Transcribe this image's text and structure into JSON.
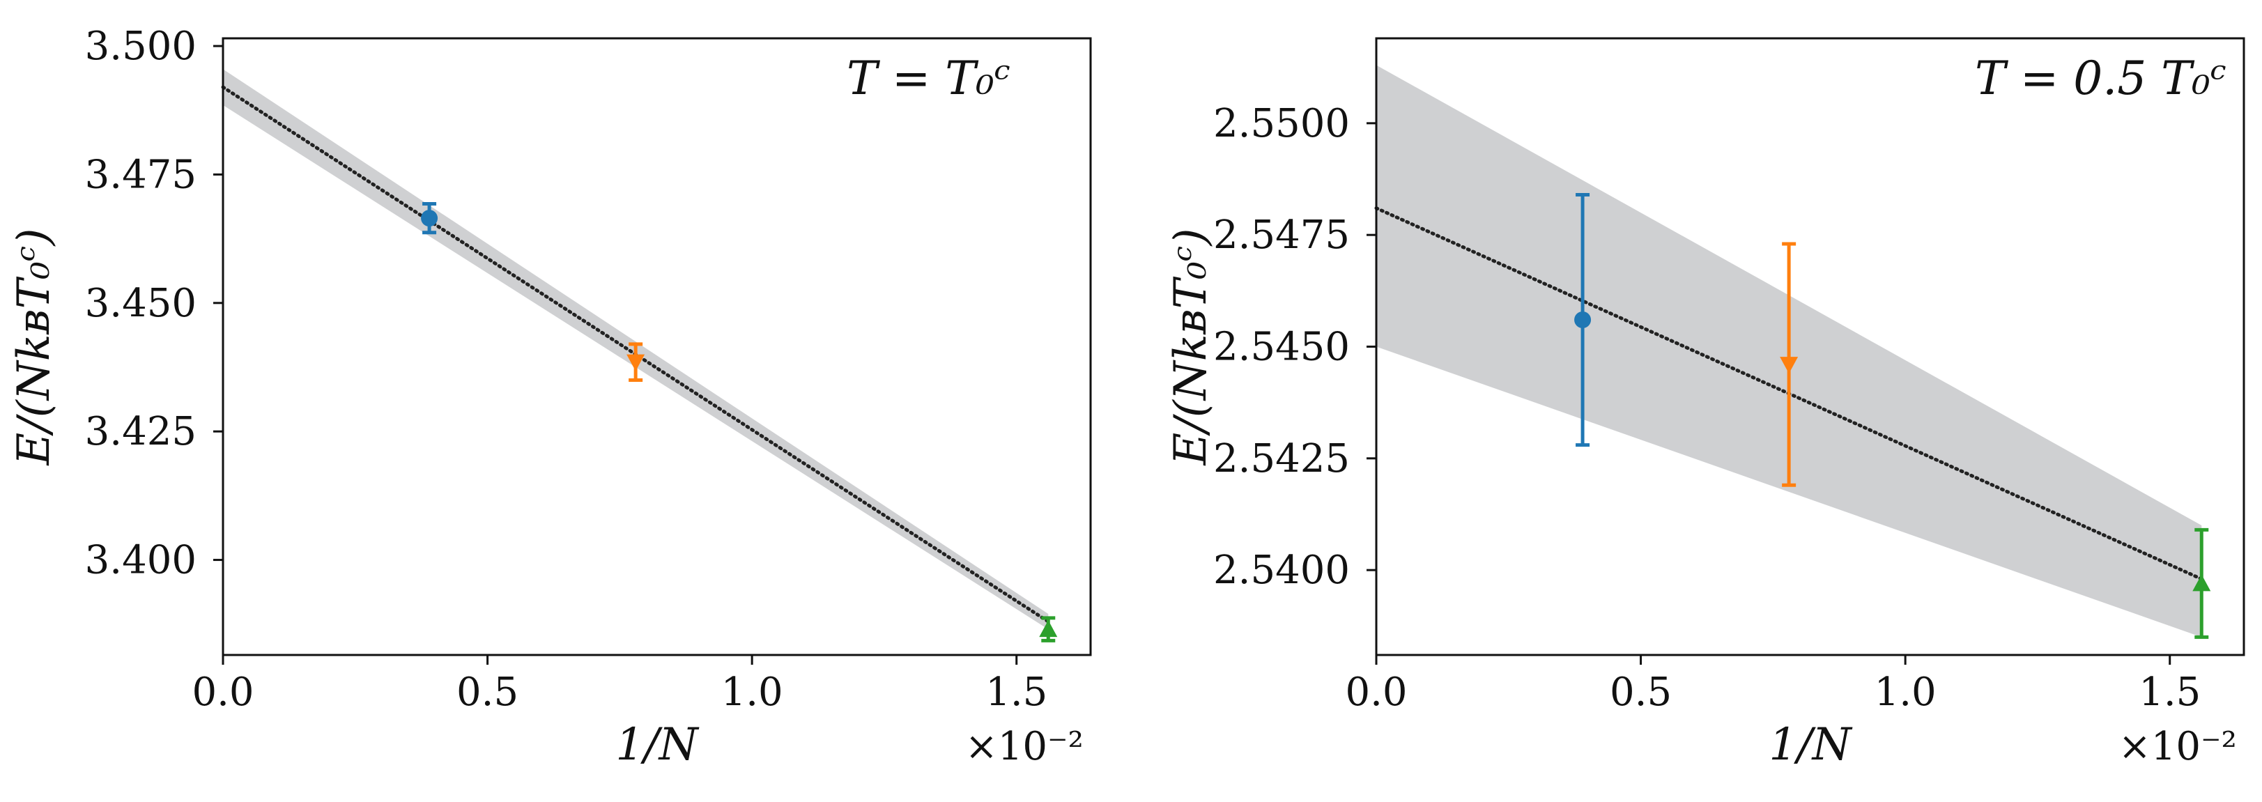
{
  "chart_data": [
    {
      "type": "scatter",
      "annotation": "T = T₀ᶜ",
      "xlabel": "1/N",
      "ylabel": "E/(NkʙT₀ᶜ)",
      "x_offset_label": "×10⁻²",
      "xlim": [
        0.0,
        1.64
      ],
      "ylim": [
        3.3815,
        3.5015
      ],
      "x_ticks": [
        0.0,
        0.5,
        1.0,
        1.5
      ],
      "x_tick_labels": [
        "0.0",
        "0.5",
        "1.0",
        "1.5"
      ],
      "y_ticks": [
        3.4,
        3.425,
        3.45,
        3.475,
        3.5
      ],
      "y_tick_labels": [
        "3.400",
        "3.425",
        "3.450",
        "3.475",
        "3.500"
      ],
      "grid": false,
      "fit": {
        "style": "dotted",
        "color": "#222222",
        "x": [
          0.0,
          1.56
        ],
        "y": [
          3.492,
          3.388
        ],
        "band_lower": [
          3.4885,
          3.3865
        ],
        "band_upper": [
          3.4955,
          3.3895
        ],
        "band_color": "#cfd0d2"
      },
      "series": [
        {
          "marker": "circle",
          "color": "#1f77b4",
          "x": 0.39,
          "y": 3.4665,
          "yerr": 0.0028
        },
        {
          "marker": "triangle-down",
          "color": "#ff7f0e",
          "x": 0.78,
          "y": 3.4385,
          "yerr": 0.0035
        },
        {
          "marker": "triangle-up",
          "color": "#2ca02c",
          "x": 1.56,
          "y": 3.3865,
          "yerr": 0.0022
        }
      ]
    },
    {
      "type": "scatter",
      "annotation": "T = 0.5 T₀ᶜ",
      "xlabel": "1/N",
      "ylabel": "E/(NkʙT₀ᶜ)",
      "x_offset_label": "×10⁻²",
      "xlim": [
        0.0,
        1.64
      ],
      "ylim": [
        2.5381,
        2.5519
      ],
      "x_ticks": [
        0.0,
        0.5,
        1.0,
        1.5
      ],
      "x_tick_labels": [
        "0.0",
        "0.5",
        "1.0",
        "1.5"
      ],
      "y_ticks": [
        2.54,
        2.5425,
        2.545,
        2.5475,
        2.55
      ],
      "y_tick_labels": [
        "2.5400",
        "2.5425",
        "2.5450",
        "2.5475",
        "2.5500"
      ],
      "grid": false,
      "fit": {
        "style": "dotted",
        "color": "#222222",
        "x": [
          0.0,
          1.56
        ],
        "y": [
          2.5481,
          2.5398
        ],
        "band_lower": [
          2.545,
          2.5385
        ],
        "band_upper": [
          2.5513,
          2.541
        ],
        "band_color": "#cfd0d2"
      },
      "series": [
        {
          "marker": "circle",
          "color": "#1f77b4",
          "x": 0.39,
          "y": 2.5456,
          "yerr": 0.0028
        },
        {
          "marker": "triangle-down",
          "color": "#ff7f0e",
          "x": 0.78,
          "y": 2.5446,
          "yerr": 0.0027
        },
        {
          "marker": "triangle-up",
          "color": "#2ca02c",
          "x": 1.56,
          "y": 2.5397,
          "yerr": 0.0012
        }
      ]
    }
  ]
}
